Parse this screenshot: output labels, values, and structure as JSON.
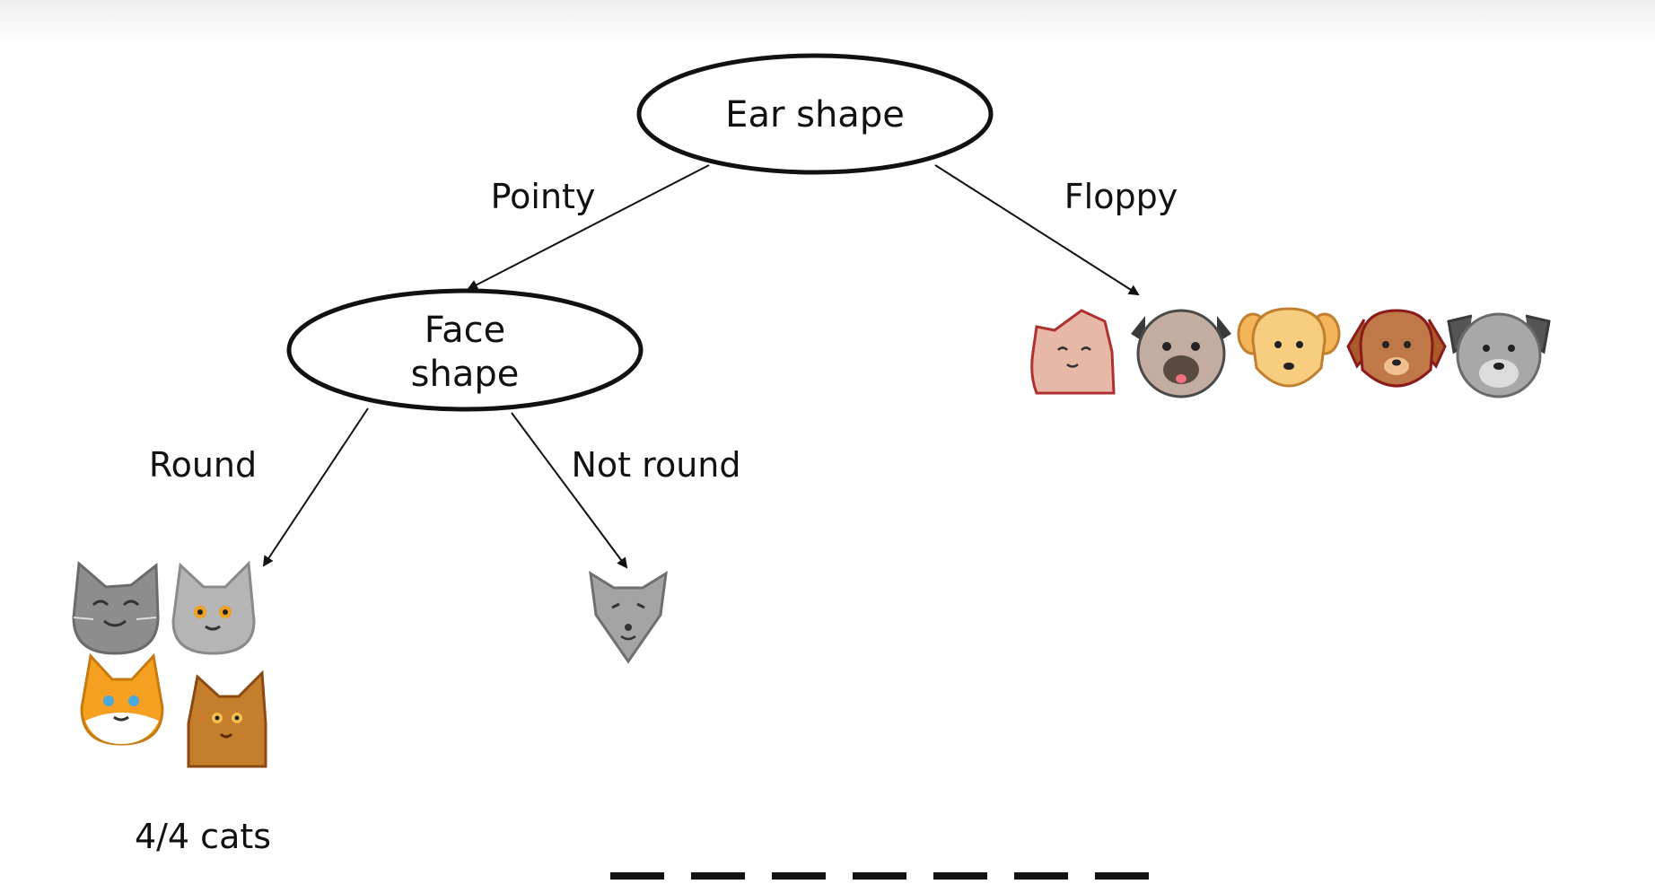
{
  "root": {
    "label": "Ear shape"
  },
  "left_branch": {
    "edge_label": "Pointy",
    "node": {
      "label_line1": "Face",
      "label_line2": "shape"
    },
    "children": [
      {
        "edge_label": "Round",
        "leaf_count": "4/4 cats"
      },
      {
        "edge_label": "Not round"
      }
    ]
  },
  "right_branch": {
    "edge_label": "Floppy"
  },
  "animals": {
    "round_leaf": [
      "gray-cat-smiling",
      "gray-cat-orange-eyes",
      "orange-white-cat",
      "brown-cat"
    ],
    "not_round_leaf": [
      "gray-cat-pointy"
    ],
    "floppy_leaf": [
      "pink-cat-folded-ears",
      "pug-dog",
      "golden-dog",
      "brown-dog",
      "gray-dog"
    ]
  },
  "colors": {
    "gray_cat": "#8d8d8d",
    "orange_cat": "#f5a020",
    "brown_cat": "#c57f2c",
    "pink_cat": "#e8b8a6",
    "pug": "#c2ada0",
    "golden_dog": "#f7cd7f",
    "brown_dog": "#c07848",
    "gray_dog": "#a8a8a8"
  }
}
